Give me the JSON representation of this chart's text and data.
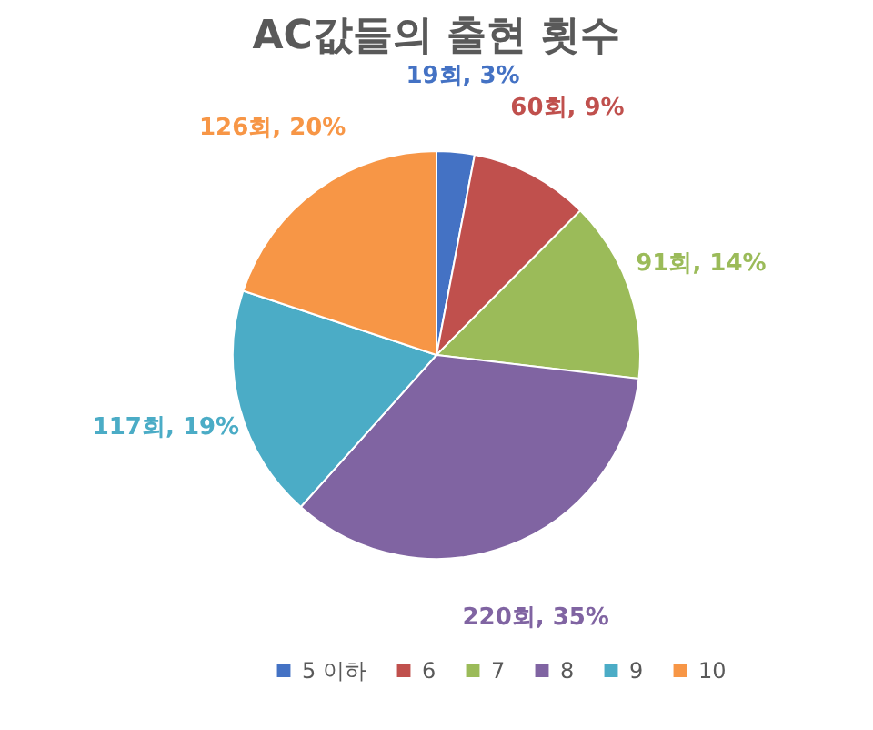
{
  "chart_data": {
    "type": "pie",
    "title": "AC값들의 출현 횟수",
    "categories": [
      "5 이하",
      "6",
      "7",
      "8",
      "9",
      "10"
    ],
    "values": [
      19,
      60,
      91,
      220,
      117,
      126
    ],
    "colors": [
      "#4472c4",
      "#c0504d",
      "#9bbb59",
      "#8064a2",
      "#4bacc6",
      "#f79646"
    ],
    "value_labels": [
      "19회, 3%",
      "60회, 9%",
      "91회, 14%",
      "220회, 35%",
      "117회, 19%",
      "126회, 20%"
    ],
    "legend": "bottom"
  }
}
